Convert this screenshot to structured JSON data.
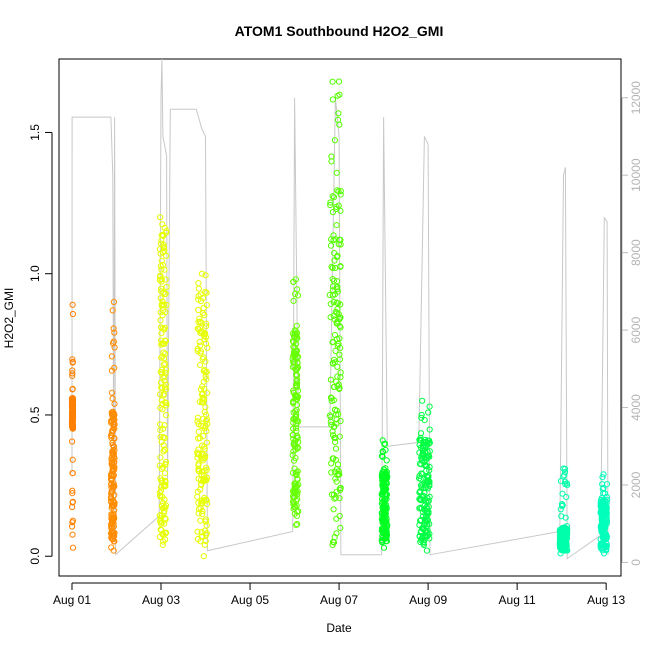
{
  "chart_data": {
    "type": "scatter",
    "title": "ATOM1 Southbound H2O2_GMI",
    "xlabel": "Date",
    "ylabel": "H2O2_GMI",
    "xlim": [
      "2016-07-31T17:00",
      "2016-08-13T08:00"
    ],
    "ylim": [
      -0.07,
      1.76
    ],
    "y2lim": [
      -350,
      13000
    ],
    "x_ticks": [
      {
        "label": "Aug 01",
        "value": "2016-08-01"
      },
      {
        "label": "Aug 03",
        "value": "2016-08-03"
      },
      {
        "label": "Aug 05",
        "value": "2016-08-05"
      },
      {
        "label": "Aug 07",
        "value": "2016-08-07"
      },
      {
        "label": "Aug 09",
        "value": "2016-08-09"
      },
      {
        "label": "Aug 11",
        "value": "2016-08-11"
      },
      {
        "label": "Aug 13",
        "value": "2016-08-13"
      }
    ],
    "y_ticks": [
      {
        "label": "0.0",
        "value": 0.0
      },
      {
        "label": "0.5",
        "value": 0.5
      },
      {
        "label": "1.0",
        "value": 1.0
      },
      {
        "label": "1.5",
        "value": 1.5
      }
    ],
    "y2_ticks": [
      {
        "label": "0",
        "value": 0
      },
      {
        "label": "2000",
        "value": 2000
      },
      {
        "label": "4000",
        "value": 4000
      },
      {
        "label": "6000",
        "value": 6000
      },
      {
        "label": "8000",
        "value": 8000
      },
      {
        "label": "10000",
        "value": 10000
      },
      {
        "label": "12000",
        "value": 12000
      }
    ],
    "grid": false,
    "legend": "none",
    "secondary_series_color": "#c8c8c8",
    "segments": [
      {
        "start": "2016-08-01T00:00",
        "end": "2016-08-01T00:10",
        "ymin": 0.03,
        "ymax": 0.89,
        "dense_low": 0.45,
        "dense_high": 0.56,
        "color": "#ff8000"
      },
      {
        "start": "2016-08-01T21:00",
        "end": "2016-08-01T23:00",
        "ymin": 0.02,
        "ymax": 0.9,
        "dense_low": 0.05,
        "dense_high": 0.52,
        "color": "#ff8c00"
      },
      {
        "start": "2016-08-02T23:20",
        "end": "2016-08-03T03:00",
        "ymin": 0.04,
        "ymax": 1.2,
        "dense_low": 0.05,
        "dense_high": 1.18,
        "color": "#e6ff00"
      },
      {
        "start": "2016-08-03T19:30",
        "end": "2016-08-04T01:00",
        "ymin": 0.0,
        "ymax": 1.0,
        "dense_low": 0.05,
        "dense_high": 0.95,
        "color": "#e6ff00"
      },
      {
        "start": "2016-08-05T23:00",
        "end": "2016-08-06T02:00",
        "ymin": 0.11,
        "ymax": 0.98,
        "dense_low": 0.15,
        "dense_high": 0.8,
        "color": "#66ff00"
      },
      {
        "start": "2016-08-06T19:00",
        "end": "2016-08-07T01:00",
        "ymin": 0.04,
        "ymax": 1.68,
        "dense_low": 0.2,
        "dense_high": 1.3,
        "color": "#55ff00"
      },
      {
        "start": "2016-08-07T23:00",
        "end": "2016-08-08T02:00",
        "ymin": 0.03,
        "ymax": 0.41,
        "dense_low": 0.05,
        "dense_high": 0.3,
        "color": "#00ff22"
      },
      {
        "start": "2016-08-08T19:00",
        "end": "2016-08-09T01:00",
        "ymin": 0.02,
        "ymax": 0.55,
        "dense_low": 0.05,
        "dense_high": 0.42,
        "color": "#00ff44"
      },
      {
        "start": "2016-08-11T23:00",
        "end": "2016-08-12T03:00",
        "ymin": 0.01,
        "ymax": 0.31,
        "dense_low": 0.02,
        "dense_high": 0.1,
        "color": "#00ffaa"
      },
      {
        "start": "2016-08-12T21:00",
        "end": "2016-08-13T00:30",
        "ymin": 0.01,
        "ymax": 0.29,
        "dense_low": 0.02,
        "dense_high": 0.2,
        "color": "#00ffbb"
      }
    ],
    "altitude_series": [
      {
        "t": "2016-08-01T00:00",
        "alt": 2300
      },
      {
        "t": "2016-08-01T00:05",
        "alt": 11500
      },
      {
        "t": "2016-08-01T21:00",
        "alt": 11500
      },
      {
        "t": "2016-08-01T22:00",
        "alt": 10000
      },
      {
        "t": "2016-08-01T22:30",
        "alt": 2000
      },
      {
        "t": "2016-08-01T23:00",
        "alt": 11500
      },
      {
        "t": "2016-08-01T23:30",
        "alt": 200
      },
      {
        "t": "2016-08-02T23:00",
        "alt": 1200
      },
      {
        "t": "2016-08-03T00:00",
        "alt": 12000
      },
      {
        "t": "2016-08-03T00:30",
        "alt": 13000
      },
      {
        "t": "2016-08-03T01:00",
        "alt": 11000
      },
      {
        "t": "2016-08-03T03:00",
        "alt": 10500
      },
      {
        "t": "2016-08-03T03:30",
        "alt": 2000
      },
      {
        "t": "2016-08-03T05:00",
        "alt": 11700
      },
      {
        "t": "2016-08-03T19:00",
        "alt": 11700
      },
      {
        "t": "2016-08-03T22:00",
        "alt": 11200
      },
      {
        "t": "2016-08-04T00:00",
        "alt": 11000
      },
      {
        "t": "2016-08-04T01:00",
        "alt": 300
      },
      {
        "t": "2016-08-05T23:00",
        "alt": 800
      },
      {
        "t": "2016-08-06T00:00",
        "alt": 12000
      },
      {
        "t": "2016-08-06T02:00",
        "alt": 3500
      },
      {
        "t": "2016-08-06T19:00",
        "alt": 3500
      },
      {
        "t": "2016-08-06T22:00",
        "alt": 12000
      },
      {
        "t": "2016-08-07T00:00",
        "alt": 11000
      },
      {
        "t": "2016-08-07T01:00",
        "alt": 200
      },
      {
        "t": "2016-08-07T23:00",
        "alt": 200
      },
      {
        "t": "2016-08-08T00:00",
        "alt": 11500
      },
      {
        "t": "2016-08-08T02:00",
        "alt": 3000
      },
      {
        "t": "2016-08-08T19:00",
        "alt": 3100
      },
      {
        "t": "2016-08-08T22:00",
        "alt": 11000
      },
      {
        "t": "2016-08-09T00:00",
        "alt": 10800
      },
      {
        "t": "2016-08-09T01:00",
        "alt": 200
      },
      {
        "t": "2016-08-11T23:00",
        "alt": 800
      },
      {
        "t": "2016-08-12T01:00",
        "alt": 10000
      },
      {
        "t": "2016-08-12T02:00",
        "alt": 10200
      },
      {
        "t": "2016-08-12T03:00",
        "alt": 100
      },
      {
        "t": "2016-08-12T21:00",
        "alt": 700
      },
      {
        "t": "2016-08-12T23:00",
        "alt": 8900
      },
      {
        "t": "2016-08-13T00:30",
        "alt": 8800
      },
      {
        "t": "2016-08-13T01:00",
        "alt": 200
      }
    ]
  }
}
